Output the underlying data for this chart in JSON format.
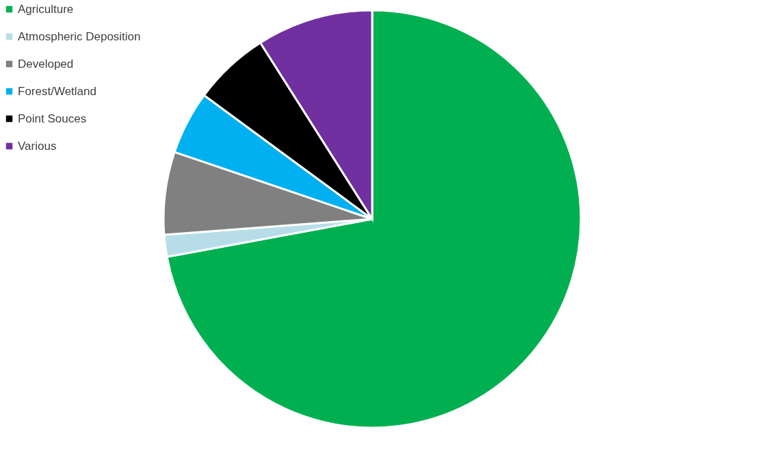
{
  "chart_data": {
    "type": "pie",
    "categories": [
      "Agriculture",
      "Atmospheric Deposition",
      "Developed",
      "Forest/Wetland",
      "Point Souces",
      "Various"
    ],
    "values": [
      72.1,
      1.7,
      6.4,
      4.9,
      5.9,
      9.0
    ],
    "colors": [
      "#00b050",
      "#b7dee8",
      "#808080",
      "#00b0f0",
      "#000000",
      "#7030a0"
    ],
    "legend": "left"
  }
}
